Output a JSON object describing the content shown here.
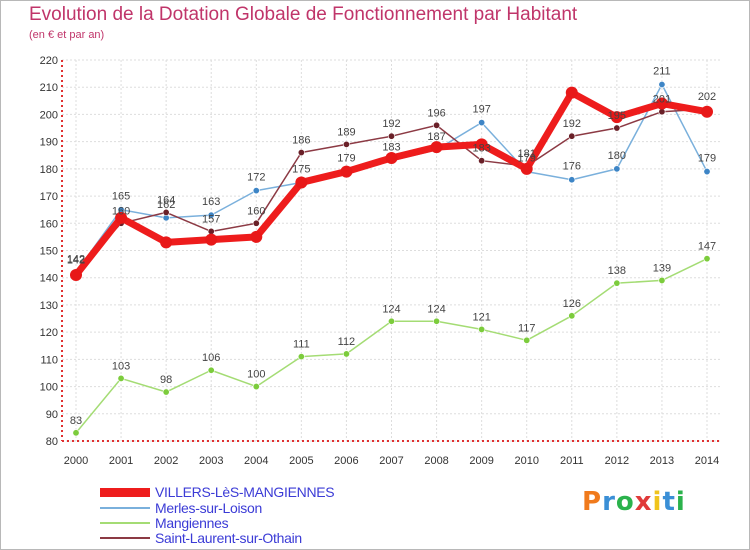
{
  "title": "Evolution de la Dotation Globale de Fonctionnement par Habitant",
  "subtitle": "(en € et par an)",
  "logo": {
    "text": "Proxiti",
    "colors": [
      "#f07a1c",
      "#3a8fd6",
      "#2bb24c",
      "#e03a3a",
      "#f0c41c",
      "#3a8fd6",
      "#2bb24c"
    ]
  },
  "chart_data": {
    "type": "line",
    "categories": [
      "2000",
      "2001",
      "2002",
      "2003",
      "2004",
      "2005",
      "2006",
      "2007",
      "2008",
      "2009",
      "2010",
      "2011",
      "2012",
      "2013",
      "2014"
    ],
    "ylim": [
      80,
      220
    ],
    "yticks": [
      80,
      90,
      100,
      110,
      120,
      130,
      140,
      150,
      160,
      170,
      180,
      190,
      200,
      210,
      220
    ],
    "grid": true,
    "legend_position": "bottom-left",
    "series": [
      {
        "name": "VILLERS-LèS-MANGIENNES",
        "color": "#ee1c1c",
        "marker": "#e81818",
        "width": 7,
        "labels": false,
        "values": [
          141,
          162,
          153,
          154,
          155,
          175,
          179,
          184,
          188,
          189,
          180,
          208,
          199,
          204,
          201
        ]
      },
      {
        "name": "Merles-sur-Loison",
        "color": "#7ab0dc",
        "marker": "#3d85c6",
        "width": 1.5,
        "labels": true,
        "values": [
          142,
          165,
          162,
          163,
          172,
          175,
          179,
          183,
          187,
          197,
          179,
          176,
          180,
          211,
          179
        ]
      },
      {
        "name": "Mangiennes",
        "color": "#a4dc74",
        "marker": "#7ccc3c",
        "width": 1.5,
        "labels": true,
        "values": [
          83,
          103,
          98,
          106,
          100,
          111,
          112,
          124,
          124,
          121,
          117,
          126,
          138,
          139,
          147
        ]
      },
      {
        "name": "Saint-Laurent-sur-Othain",
        "color": "#8c3a44",
        "marker": "#6a2028",
        "width": 1.5,
        "labels": true,
        "values": [
          142,
          160,
          164,
          157,
          160,
          186,
          189,
          192,
          196,
          183,
          181,
          192,
          195,
          201,
          202
        ]
      }
    ]
  }
}
